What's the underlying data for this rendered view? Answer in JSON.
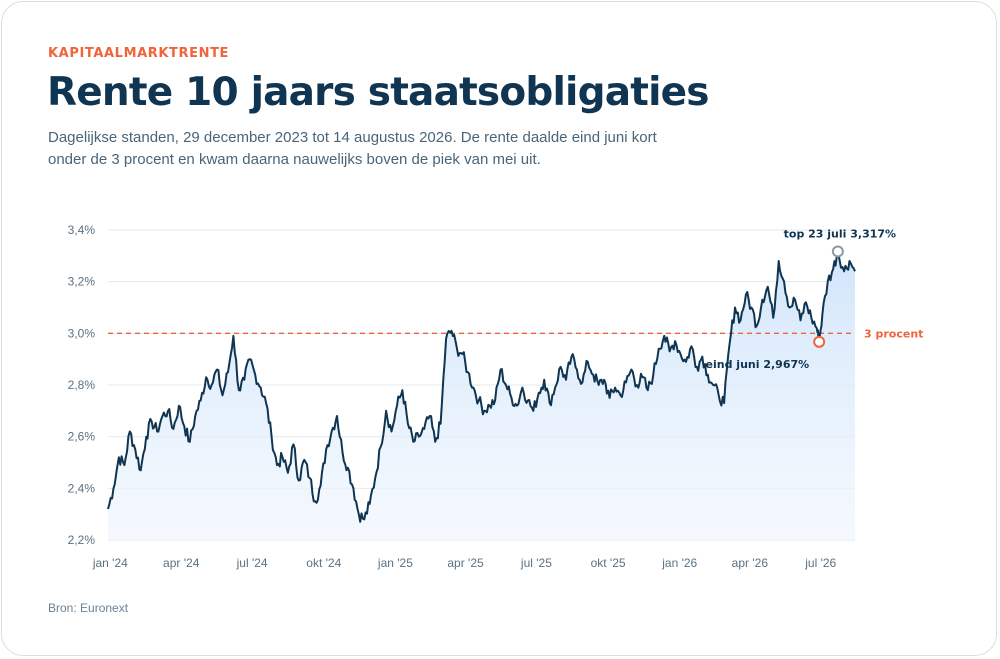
{
  "header": {
    "kicker": "KAPITAALMARKTRENTE",
    "title": "Rente 10 jaars staatsobligaties",
    "subtitle": "Dagelijkse standen, 29 december 2023 tot 14 augustus 2026. De rente daalde eind juni kort onder de 3 procent en kwam daarna nauwelijks boven de piek van mei uit."
  },
  "source": "Bron: Euronext",
  "colors": {
    "line": "#0f3552",
    "area": "#dbeafb",
    "reference": "#f0643c",
    "peak_marker": "#8a98a4",
    "grid": "#e3e8ec"
  },
  "chart_data": {
    "type": "area",
    "title": "Rente 10 jaars staatsobligaties",
    "x_start": "2023-12-29",
    "x_end": "2026-08-14",
    "xlabel": "",
    "ylabel": "",
    "ylim": [
      2.2,
      3.4
    ],
    "yticks": [
      {
        "value": 2.2,
        "label": "2,2%"
      },
      {
        "value": 2.4,
        "label": "2,4%"
      },
      {
        "value": 2.6,
        "label": "2,6%"
      },
      {
        "value": 2.8,
        "label": "2,8%"
      },
      {
        "value": 3.0,
        "label": "3,0%"
      },
      {
        "value": 3.2,
        "label": "3,2%"
      },
      {
        "value": 3.4,
        "label": "3,4%"
      }
    ],
    "xticks": [
      {
        "date": "2024-01-01",
        "label": "jan '24"
      },
      {
        "date": "2024-04-01",
        "label": "apr '24"
      },
      {
        "date": "2024-07-01",
        "label": "jul '24"
      },
      {
        "date": "2024-10-01",
        "label": "okt '24"
      },
      {
        "date": "2025-01-01",
        "label": "jan '25"
      },
      {
        "date": "2025-04-01",
        "label": "apr '25"
      },
      {
        "date": "2025-07-01",
        "label": "jul '25"
      },
      {
        "date": "2025-10-01",
        "label": "okt '25"
      },
      {
        "date": "2026-01-01",
        "label": "jan '26"
      },
      {
        "date": "2026-04-01",
        "label": "apr '26"
      },
      {
        "date": "2026-07-01",
        "label": "jul '26"
      }
    ],
    "grid": true,
    "reference_line": {
      "value": 3.0,
      "label": "3 procent"
    },
    "annotations": [
      {
        "date": "2026-07-23",
        "value": 3.317,
        "label": "top 23 juli 3,317%"
      },
      {
        "date": "2026-06-29",
        "value": 2.967,
        "label": "eind juni 2,967%"
      }
    ],
    "series": [
      {
        "values": [
          [
            "2023-12-29",
            2.32
          ],
          [
            "2024-01-05",
            2.4
          ],
          [
            "2024-01-12",
            2.52
          ],
          [
            "2024-01-19",
            2.49
          ],
          [
            "2024-01-26",
            2.62
          ],
          [
            "2024-02-02",
            2.55
          ],
          [
            "2024-02-09",
            2.47
          ],
          [
            "2024-02-16",
            2.6
          ],
          [
            "2024-02-23",
            2.66
          ],
          [
            "2024-03-01",
            2.62
          ],
          [
            "2024-03-08",
            2.68
          ],
          [
            "2024-03-15",
            2.7
          ],
          [
            "2024-03-22",
            2.63
          ],
          [
            "2024-03-29",
            2.72
          ],
          [
            "2024-04-05",
            2.64
          ],
          [
            "2024-04-12",
            2.58
          ],
          [
            "2024-04-19",
            2.68
          ],
          [
            "2024-04-26",
            2.74
          ],
          [
            "2024-05-03",
            2.83
          ],
          [
            "2024-05-10",
            2.8
          ],
          [
            "2024-05-17",
            2.86
          ],
          [
            "2024-05-24",
            2.76
          ],
          [
            "2024-05-31",
            2.85
          ],
          [
            "2024-06-07",
            2.99
          ],
          [
            "2024-06-14",
            2.78
          ],
          [
            "2024-06-21",
            2.82
          ],
          [
            "2024-06-28",
            2.9
          ],
          [
            "2024-07-05",
            2.84
          ],
          [
            "2024-07-12",
            2.79
          ],
          [
            "2024-07-19",
            2.73
          ],
          [
            "2024-07-26",
            2.6
          ],
          [
            "2024-08-02",
            2.49
          ],
          [
            "2024-08-09",
            2.52
          ],
          [
            "2024-08-16",
            2.46
          ],
          [
            "2024-08-23",
            2.57
          ],
          [
            "2024-08-30",
            2.43
          ],
          [
            "2024-09-06",
            2.51
          ],
          [
            "2024-09-13",
            2.44
          ],
          [
            "2024-09-20",
            2.35
          ],
          [
            "2024-09-27",
            2.41
          ],
          [
            "2024-10-04",
            2.55
          ],
          [
            "2024-10-11",
            2.62
          ],
          [
            "2024-10-18",
            2.68
          ],
          [
            "2024-10-25",
            2.54
          ],
          [
            "2024-11-01",
            2.48
          ],
          [
            "2024-11-08",
            2.4
          ],
          [
            "2024-11-15",
            2.3
          ],
          [
            "2024-11-22",
            2.28
          ],
          [
            "2024-11-29",
            2.34
          ],
          [
            "2024-12-06",
            2.44
          ],
          [
            "2024-12-13",
            2.56
          ],
          [
            "2024-12-20",
            2.7
          ],
          [
            "2024-12-27",
            2.62
          ],
          [
            "2025-01-03",
            2.72
          ],
          [
            "2025-01-10",
            2.78
          ],
          [
            "2025-01-17",
            2.65
          ],
          [
            "2025-01-24",
            2.58
          ],
          [
            "2025-01-31",
            2.6
          ],
          [
            "2025-02-07",
            2.63
          ],
          [
            "2025-02-14",
            2.68
          ],
          [
            "2025-02-21",
            2.58
          ],
          [
            "2025-02-28",
            2.65
          ],
          [
            "2025-03-07",
            2.98
          ],
          [
            "2025-03-14",
            3.01
          ],
          [
            "2025-03-21",
            2.94
          ],
          [
            "2025-03-28",
            2.92
          ],
          [
            "2025-04-04",
            2.85
          ],
          [
            "2025-04-11",
            2.79
          ],
          [
            "2025-04-18",
            2.74
          ],
          [
            "2025-04-25",
            2.7
          ],
          [
            "2025-05-02",
            2.72
          ],
          [
            "2025-05-09",
            2.74
          ],
          [
            "2025-05-16",
            2.86
          ],
          [
            "2025-05-23",
            2.8
          ],
          [
            "2025-05-30",
            2.75
          ],
          [
            "2025-06-06",
            2.72
          ],
          [
            "2025-06-13",
            2.79
          ],
          [
            "2025-06-20",
            2.74
          ],
          [
            "2025-06-27",
            2.7
          ],
          [
            "2025-07-04",
            2.77
          ],
          [
            "2025-07-11",
            2.82
          ],
          [
            "2025-07-18",
            2.73
          ],
          [
            "2025-07-25",
            2.79
          ],
          [
            "2025-08-01",
            2.87
          ],
          [
            "2025-08-08",
            2.82
          ],
          [
            "2025-08-15",
            2.91
          ],
          [
            "2025-08-22",
            2.86
          ],
          [
            "2025-08-29",
            2.81
          ],
          [
            "2025-09-05",
            2.89
          ],
          [
            "2025-09-12",
            2.84
          ],
          [
            "2025-09-19",
            2.8
          ],
          [
            "2025-09-26",
            2.82
          ],
          [
            "2025-10-03",
            2.75
          ],
          [
            "2025-10-10",
            2.79
          ],
          [
            "2025-10-17",
            2.76
          ],
          [
            "2025-10-24",
            2.81
          ],
          [
            "2025-10-31",
            2.86
          ],
          [
            "2025-11-07",
            2.8
          ],
          [
            "2025-11-14",
            2.83
          ],
          [
            "2025-11-21",
            2.78
          ],
          [
            "2025-11-28",
            2.84
          ],
          [
            "2025-12-05",
            2.94
          ],
          [
            "2025-12-12",
            2.99
          ],
          [
            "2025-12-19",
            2.93
          ],
          [
            "2025-12-26",
            2.97
          ],
          [
            "2026-01-02",
            2.92
          ],
          [
            "2026-01-09",
            2.89
          ],
          [
            "2026-01-16",
            2.95
          ],
          [
            "2026-01-23",
            2.87
          ],
          [
            "2026-01-30",
            2.91
          ],
          [
            "2026-02-06",
            2.84
          ],
          [
            "2026-02-13",
            2.8
          ],
          [
            "2026-02-20",
            2.76
          ],
          [
            "2026-02-27",
            2.73
          ],
          [
            "2026-03-06",
            2.96
          ],
          [
            "2026-03-13",
            3.1
          ],
          [
            "2026-03-20",
            3.05
          ],
          [
            "2026-03-27",
            3.15
          ],
          [
            "2026-04-03",
            3.1
          ],
          [
            "2026-04-10",
            3.03
          ],
          [
            "2026-04-17",
            3.13
          ],
          [
            "2026-04-24",
            3.18
          ],
          [
            "2026-05-01",
            3.06
          ],
          [
            "2026-05-08",
            3.28
          ],
          [
            "2026-05-15",
            3.2
          ],
          [
            "2026-05-22",
            3.1
          ],
          [
            "2026-05-29",
            3.13
          ],
          [
            "2026-06-05",
            3.05
          ],
          [
            "2026-06-12",
            3.12
          ],
          [
            "2026-06-19",
            3.06
          ],
          [
            "2026-06-26",
            3.02
          ],
          [
            "2026-06-29",
            2.967
          ],
          [
            "2026-07-03",
            3.07
          ],
          [
            "2026-07-10",
            3.2
          ],
          [
            "2026-07-17",
            3.25
          ],
          [
            "2026-07-23",
            3.317
          ],
          [
            "2026-07-31",
            3.24
          ],
          [
            "2026-08-07",
            3.28
          ],
          [
            "2026-08-14",
            3.24
          ]
        ]
      }
    ]
  }
}
